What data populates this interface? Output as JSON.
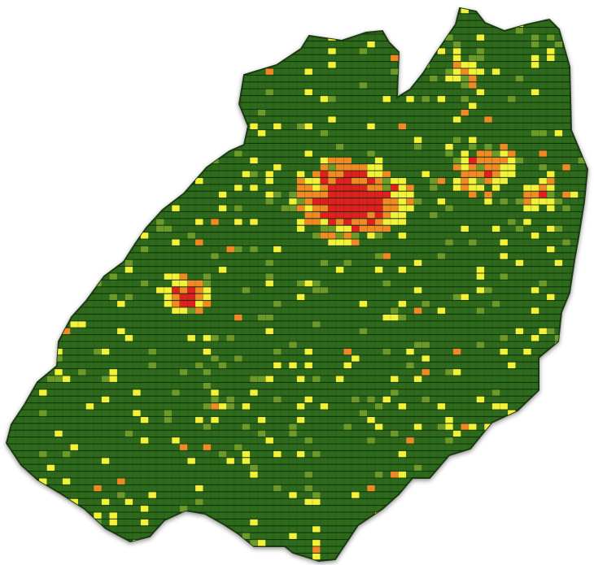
{
  "map": {
    "colors": {
      "background": "#ffffff",
      "base": "#2f6b1a",
      "grid_line": "#0f2a08",
      "classes": {
        "light_green": "#6d9b2a",
        "yellow": "#f2f23a",
        "orange": "#f08a24",
        "red": "#e01f1f"
      }
    },
    "legend": []
  }
}
